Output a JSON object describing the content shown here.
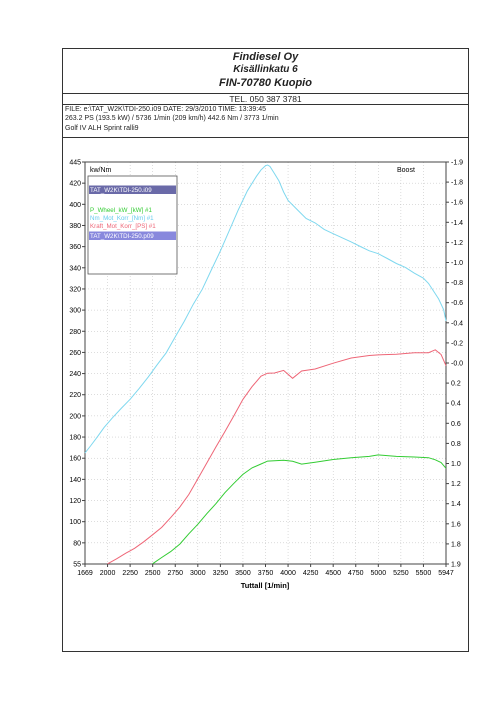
{
  "header": {
    "company": "Findiesel Oy",
    "street": "Kisällinkatu 6",
    "city": "FIN-70780 Kuopio",
    "tel": "TEL. 050 387 3781"
  },
  "meta": {
    "line1": "FILE: e:\\TAT_W2K\\TDI-250.i09  DATE: 29/3/2010  TIME: 13:39:45",
    "line2": "263.2 PS  (193.5 kW) / 5736 1/min (209 km/h)     442.6 Nm / 3773 1/min",
    "line3": "Golf IV ALH Sprint ralli9"
  },
  "chart_data": {
    "type": "line",
    "xlabel": "Tuttall  [1/min]",
    "y_left_label": "kw/Nm",
    "y_right_label": "Boost",
    "x_ticks": [
      "1669",
      "2000",
      "2250",
      "2500",
      "2750",
      "3000",
      "3250",
      "3500",
      "3750",
      "4000",
      "4250",
      "4500",
      "4750",
      "5000",
      "5250",
      "5500",
      "5947"
    ],
    "y_left_ticks": [
      "445",
      "420",
      "400",
      "380",
      "360",
      "340",
      "320",
      "300",
      "280",
      "260",
      "240",
      "220",
      "200",
      "180",
      "160",
      "140",
      "120",
      "100",
      "80",
      "55"
    ],
    "y_right_ticks": [
      "-1.9",
      "-1.8",
      "-1.6",
      "-1.4",
      "-1.2",
      "-1.0",
      "-0.8",
      "-0.6",
      "-0.4",
      "-0.2",
      "-0.0",
      "0.2",
      "0.4",
      "0.6",
      "0.8",
      "1.0",
      "1.2",
      "1.4",
      "1.6",
      "1.8",
      "1.9"
    ],
    "xlim": [
      1669,
      5947
    ],
    "ylim": [
      55,
      445
    ],
    "grid": true,
    "legend_position": "top-left",
    "legend": [
      {
        "label": "TAT_W2K\\TDI-250.i09",
        "style": "selected",
        "color": "#6a6aa8"
      },
      {
        "label": "P_Wheel_kW_[kW] #1",
        "color": "#33cc33"
      },
      {
        "label": "Nm_Mot_Korr_[Nm] #1",
        "color": "#66ccee"
      },
      {
        "label": "Kraft_Mot_Korr_[PS] #1",
        "color": "#ee6677"
      },
      {
        "label": "TAT_W2K\\TDI-250.p09",
        "style": "selected",
        "color": "#8888dd"
      }
    ],
    "series": [
      {
        "name": "Nm_Mot_Korr_[Nm] #1",
        "color": "#7fd8ef",
        "x": [
          1669,
          1750,
          1850,
          1950,
          2050,
          2150,
          2250,
          2350,
          2450,
          2550,
          2650,
          2750,
          2850,
          2950,
          3050,
          3150,
          3250,
          3350,
          3450,
          3550,
          3650,
          3700,
          3750,
          3773,
          3800,
          3850,
          3900,
          3950,
          4000,
          4100,
          4200,
          4300,
          4400,
          4500,
          4600,
          4700,
          4800,
          4900,
          5000,
          5100,
          5200,
          5300,
          5400,
          5500,
          5600,
          5700,
          5800,
          5900,
          5947
        ],
        "y": [
          165,
          172,
          180,
          189,
          198,
          207,
          216,
          226,
          237,
          248,
          260,
          275,
          290,
          305,
          320,
          338,
          356,
          375,
          395,
          413,
          428,
          435,
          440,
          442,
          440,
          432,
          422,
          412,
          404,
          395,
          387,
          382,
          376,
          372,
          368,
          364,
          360,
          356,
          353,
          349,
          344,
          340,
          335,
          330,
          325,
          318,
          311,
          300,
          290
        ]
      },
      {
        "name": "Kraft_Mot_Korr_[PS] #1",
        "color": "#ee6677",
        "x": [
          2000,
          2100,
          2200,
          2300,
          2400,
          2500,
          2600,
          2700,
          2800,
          2900,
          3000,
          3100,
          3200,
          3300,
          3400,
          3500,
          3600,
          3700,
          3773,
          3850,
          3950,
          4050,
          4150,
          4300,
          4500,
          4700,
          4900,
          5000,
          5200,
          5400,
          5600,
          5736,
          5850,
          5947
        ],
        "y": [
          55,
          61,
          67,
          74,
          81,
          88,
          95,
          104,
          114,
          126,
          140,
          155,
          170,
          185,
          200,
          215,
          228,
          237,
          240,
          241,
          243,
          236,
          242,
          244,
          250,
          255,
          257,
          258,
          258,
          260,
          260,
          262,
          258,
          248
        ]
      },
      {
        "name": "P_Wheel_kW_[kW] #1",
        "color": "#33cc33",
        "x": [
          2500,
          2600,
          2700,
          2800,
          2900,
          3000,
          3100,
          3200,
          3300,
          3400,
          3500,
          3600,
          3700,
          3773,
          3850,
          3950,
          4050,
          4150,
          4300,
          4500,
          4700,
          4900,
          5000,
          5200,
          5400,
          5600,
          5736,
          5850,
          5947
        ],
        "y": [
          55,
          62,
          70,
          79,
          88,
          97,
          107,
          117,
          127,
          136,
          145,
          151,
          155,
          157,
          158,
          158,
          157,
          154,
          156,
          159,
          161,
          162,
          163,
          162,
          161,
          160,
          159,
          156,
          150
        ]
      }
    ]
  }
}
